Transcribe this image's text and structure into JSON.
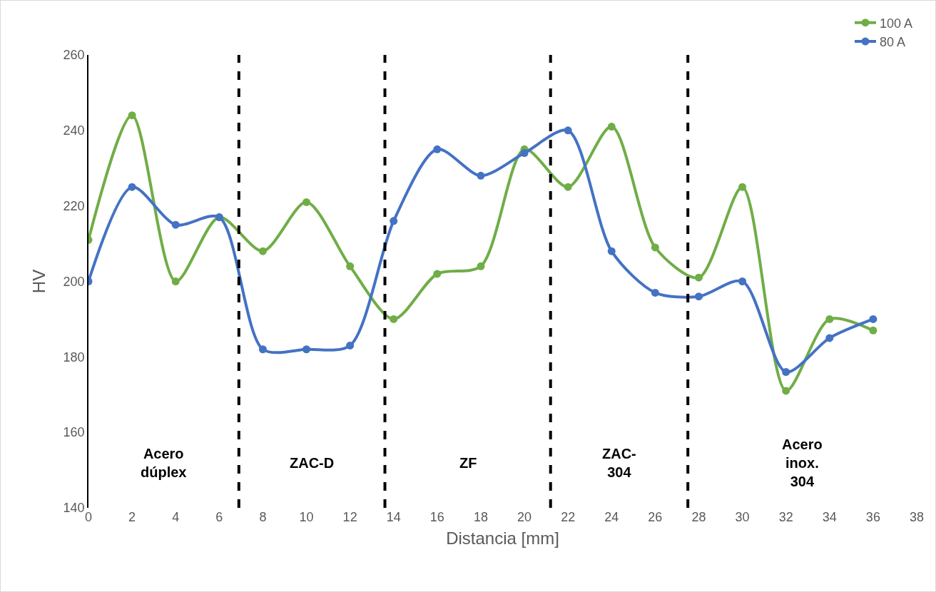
{
  "chart_data": {
    "type": "line",
    "xlabel": "Distancia [mm]",
    "ylabel": "HV",
    "x": [
      0,
      2,
      4,
      6,
      8,
      10,
      12,
      14,
      16,
      18,
      20,
      22,
      24,
      26,
      28,
      30,
      32,
      34,
      36
    ],
    "series": [
      {
        "name": "100 A",
        "color": "#70ad47",
        "values": [
          211,
          244,
          200,
          217,
          208,
          221,
          204,
          190,
          202,
          204,
          235,
          225,
          241,
          209,
          201,
          225,
          171,
          190,
          187
        ]
      },
      {
        "name": "80 A",
        "color": "#4472c4",
        "values": [
          200,
          225,
          215,
          217,
          182,
          182,
          183,
          216,
          235,
          228,
          234,
          240,
          208,
          197,
          196,
          200,
          176,
          185,
          190
        ]
      }
    ],
    "xlim": [
      0,
      38
    ],
    "xticks": [
      0,
      2,
      4,
      6,
      8,
      10,
      12,
      14,
      16,
      18,
      20,
      22,
      24,
      26,
      28,
      30,
      32,
      34,
      36,
      38
    ],
    "ylim": [
      140,
      260
    ],
    "yticks": [
      140,
      160,
      180,
      200,
      220,
      240,
      260
    ],
    "ref_lines": [
      {
        "axis": "x",
        "value": 6.9,
        "color": "#000000",
        "line_style": "dashed"
      },
      {
        "axis": "x",
        "value": 13.6,
        "color": "#000000",
        "line_style": "dashed"
      },
      {
        "axis": "x",
        "value": 21.2,
        "color": "#000000",
        "line_style": "dashed"
      },
      {
        "axis": "x",
        "value": 27.5,
        "color": "#000000",
        "line_style": "dashed"
      }
    ],
    "annotations": [
      "Acero\ndúplex",
      "ZAC-D",
      "ZF",
      "ZAC-\n304",
      "Acero\ninox.\n304"
    ],
    "grid": false,
    "legend": "top right",
    "marker": "circle",
    "line_style": "solid"
  }
}
